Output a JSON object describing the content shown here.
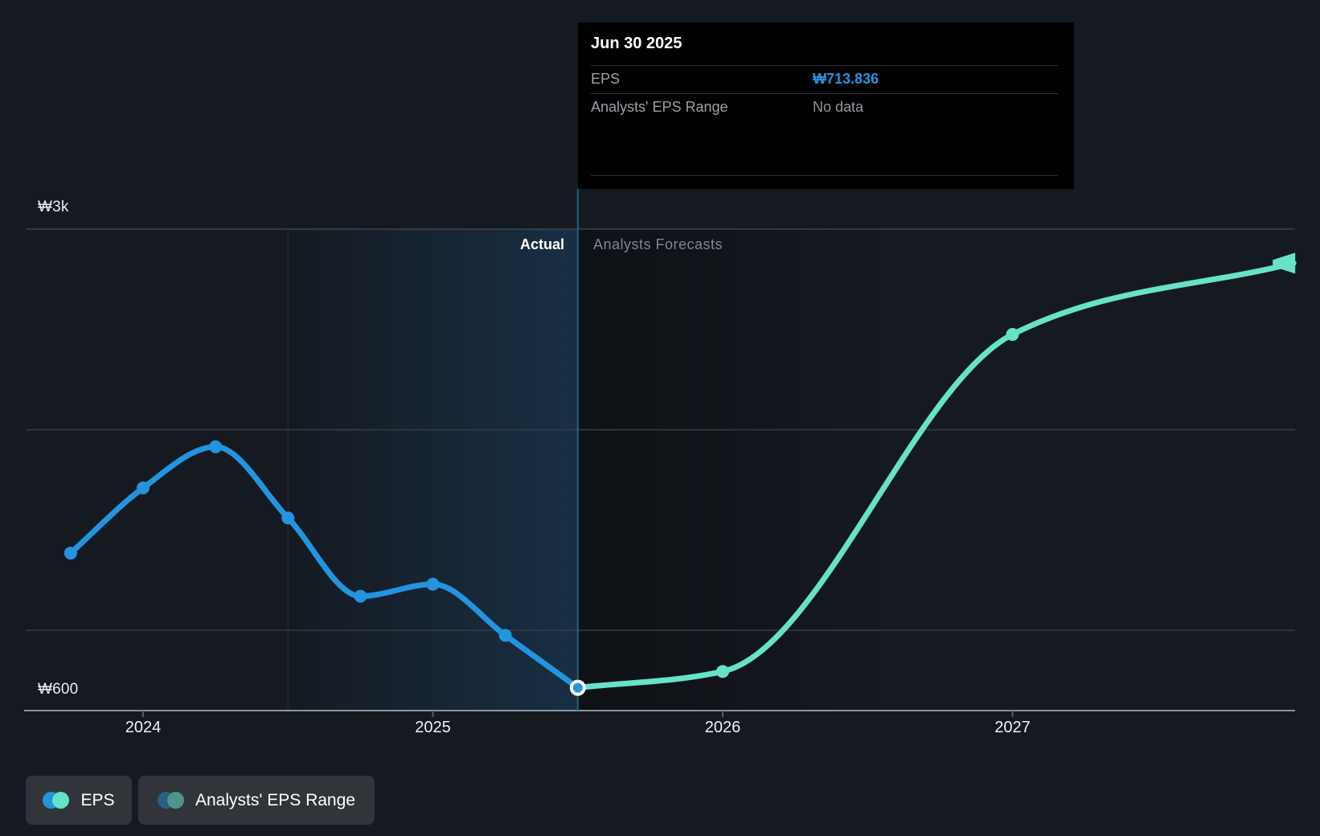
{
  "tooltip": {
    "date": "Jun 30 2025",
    "rows": [
      {
        "label": "EPS",
        "value": "₩713.836",
        "style": "eps"
      },
      {
        "label": "Analysts' EPS Range",
        "value": "No data",
        "style": "nodata"
      }
    ]
  },
  "chart": {
    "y_axis": {
      "top_label": "₩3k",
      "bottom_label": "₩600"
    },
    "x_axis": {
      "ticks": [
        "2024",
        "2025",
        "2026",
        "2027"
      ]
    },
    "annotations": {
      "actual": "Actual",
      "forecast": "Analysts Forecasts"
    }
  },
  "legend": [
    {
      "label": "EPS"
    },
    {
      "label": "Analysts' EPS Range"
    }
  ],
  "colors": {
    "eps_blue": "#2394df",
    "forecast_teal": "#66e2c7",
    "muted_blue": "#2c5f84",
    "muted_teal": "#4f948a",
    "grid": "#373d45",
    "grid_top": "#3d444c",
    "axis": "#8b939c",
    "tick": "#555c64",
    "divider": "#266080",
    "background": "#151a21",
    "tooltip_bg": "#000000"
  },
  "chart_data": {
    "type": "line",
    "title": "EPS actual vs analysts forecast (KRW)",
    "x_axis": {
      "unit": "year",
      "tick_years": [
        2024,
        2025,
        2026,
        2027
      ],
      "range": [
        2023.6,
        2028.0
      ]
    },
    "y_axis": {
      "currency": "KRW",
      "range": [
        600,
        3000
      ],
      "gridline_values": [
        3000,
        2000,
        1000
      ],
      "baseline_value": 600
    },
    "divider_year": 2025.5,
    "highlight_band_years": [
      2024.5,
      2025.5
    ],
    "series": [
      {
        "name": "EPS",
        "kind": "actual",
        "points": [
          {
            "x": 2023.75,
            "y": 1385
          },
          {
            "x": 2024.0,
            "y": 1710
          },
          {
            "x": 2024.25,
            "y": 1915
          },
          {
            "x": 2024.5,
            "y": 1560
          },
          {
            "x": 2024.75,
            "y": 1170
          },
          {
            "x": 2025.0,
            "y": 1230
          },
          {
            "x": 2025.25,
            "y": 975
          },
          {
            "x": 2025.5,
            "y": 713.836
          }
        ]
      },
      {
        "name": "Analysts Forecast",
        "kind": "forecast",
        "points": [
          {
            "x": 2025.5,
            "y": 713.836
          },
          {
            "x": 2026.0,
            "y": 795
          },
          {
            "x": 2027.0,
            "y": 2475
          },
          {
            "x": 2027.97,
            "y": 2830
          }
        ]
      }
    ]
  }
}
